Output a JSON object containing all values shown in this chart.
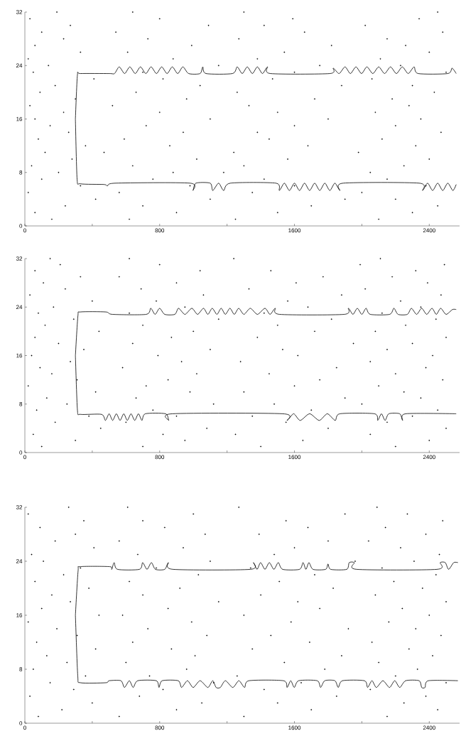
{
  "chart_data": [
    {
      "type": "scatter",
      "xlim": [
        0,
        2580
      ],
      "ylim": [
        0,
        32
      ],
      "xticks": [
        0,
        {
          "value": 400,
          "label": null
        },
        800,
        {
          "value": 1200,
          "label": null
        },
        1600,
        {
          "value": 2000,
          "label": null
        },
        2400
      ],
      "yticks": [
        0,
        8,
        16,
        24,
        32
      ],
      "series": [
        {
          "marker": "circle",
          "color": "#000000",
          "x": [
            160,
            620,
            1250,
            2100,
            60,
            900,
            1500,
            2300,
            240,
            700,
            1700,
            2450,
            420,
            1100,
            1900,
            2200,
            20,
            560,
            1350,
            2000,
            330,
            980,
            1600,
            2380,
            100,
            760,
            1420,
            2150,
            200,
            880,
            1180,
            2050,
            40,
            640,
            1300,
            2250,
            280,
            1020,
            1560,
            2400,
            120,
            470,
            1240,
            1980,
            360,
            860,
            1680,
            2320,
            80,
            590,
            1450,
            2120,
            260,
            940,
            1380,
            2470,
            150,
            720,
            1600,
            2200,
            60,
            1100,
            1800,
            2350,
            230,
            800,
            1500,
            2080,
            30,
            520,
            1330,
            2280,
            300,
            960,
            1720,
            2180,
            90,
            660,
            1260,
            2430,
            180,
            1040,
            1880,
            2300,
            410,
            820,
            1470,
            2060,
            50,
            700,
            1600,
            2500,
            140,
            1150,
            1750,
            2230,
            20,
            880,
            1380,
            2110,
            330,
            610,
            1540,
            2400,
            60,
            990,
            1820,
            2260,
            230,
            730,
            1270,
            2150,
            100,
            540,
            1660,
            2480,
            270,
            1090,
            1420,
            2020,
            30,
            800,
            1590,
            2340,
            190,
            640,
            1300,
            2450
          ],
          "values": [
            1,
            1,
            1,
            1,
            2,
            2,
            2,
            2,
            3,
            3,
            3,
            3,
            4,
            4,
            4,
            4,
            5,
            5,
            5,
            5,
            6,
            6,
            6,
            6,
            7,
            7,
            7,
            7,
            8,
            8,
            8,
            8,
            9,
            9,
            9,
            9,
            10,
            10,
            10,
            10,
            11,
            11,
            11,
            11,
            12,
            12,
            12,
            12,
            13,
            13,
            13,
            13,
            14,
            14,
            14,
            14,
            15,
            15,
            15,
            15,
            16,
            16,
            16,
            16,
            17,
            17,
            17,
            17,
            18,
            18,
            18,
            18,
            19,
            19,
            19,
            19,
            20,
            20,
            20,
            20,
            21,
            21,
            21,
            21,
            22,
            22,
            22,
            22,
            23,
            23,
            23,
            23,
            24,
            24,
            24,
            24,
            25,
            25,
            25,
            25,
            26,
            26,
            26,
            26,
            27,
            27,
            27,
            27,
            28,
            28,
            28,
            28,
            29,
            29,
            29,
            29,
            30,
            30,
            30,
            30,
            31,
            31,
            31,
            31,
            32,
            32,
            32,
            32
          ]
        },
        {
          "type": "line",
          "marker": "none",
          "color": "#000000",
          "x": [
            300,
            312,
            330,
            500,
            532,
            560,
            592,
            623,
            655,
            686,
            718,
            749,
            781,
            812,
            844,
            875,
            907,
            938,
            972,
            1040,
            1056,
            1075,
            1232,
            1260,
            1290,
            1320,
            1350,
            1380,
            1410,
            1440,
            1458,
            1810,
            1830,
            1865,
            1900,
            1932,
            1965,
            1998,
            2030,
            2065,
            2100,
            2135,
            2170,
            2205,
            2240,
            2275,
            2310,
            2334,
            2510,
            2535,
            2560
          ],
          "values": [
            16,
            22.6,
            22.8,
            22.8,
            22.8,
            23.8,
            22.8,
            23.8,
            22.8,
            23.8,
            22.8,
            23.8,
            22.8,
            23.8,
            22.8,
            23.8,
            22.8,
            23.8,
            22.8,
            22.8,
            23.8,
            22.8,
            22.8,
            23.8,
            22.8,
            23.8,
            22.8,
            23.8,
            22.8,
            23.8,
            22.8,
            22.8,
            23.6,
            22.8,
            23.8,
            22.8,
            23.8,
            22.8,
            23.8,
            22.8,
            23.8,
            22.8,
            23.8,
            22.8,
            23.8,
            22.8,
            23.8,
            22.8,
            22.8,
            23.6,
            22.8
          ]
        },
        {
          "type": "line",
          "marker": "none",
          "color": "#000000",
          "x": [
            300,
            310,
            330,
            470,
            490,
            540,
            980,
            997,
            1015,
            1100,
            1115,
            1150,
            1180,
            1220,
            1490,
            1510,
            1540,
            1570,
            1600,
            1630,
            1660,
            1690,
            1720,
            1750,
            1780,
            1810,
            1840,
            1870,
            1890,
            2340,
            2360,
            2390,
            2420,
            2450,
            2480,
            2510,
            2540,
            2560
          ],
          "values": [
            16,
            7.0,
            6.3,
            6.2,
            6.0,
            6.4,
            6.4,
            5.3,
            6.4,
            6.4,
            5.3,
            6.4,
            5.3,
            6.4,
            6.4,
            5.3,
            6.4,
            5.3,
            6.4,
            5.3,
            6.4,
            5.3,
            6.4,
            5.3,
            6.4,
            5.3,
            6.4,
            5.3,
            6.4,
            6.4,
            5.3,
            6.4,
            5.3,
            6.4,
            5.3,
            6.4,
            5.3,
            6.2
          ]
        }
      ]
    },
    {
      "type": "scatter",
      "xlim": [
        0,
        2580
      ],
      "ylim": [
        0,
        32
      ],
      "xticks": [
        0,
        {
          "value": 400,
          "label": null
        },
        800,
        {
          "value": 1200,
          "label": null
        },
        1600,
        {
          "value": 2000,
          "label": null
        },
        2400
      ],
      "yticks": [
        0,
        8,
        16,
        24,
        32
      ],
      "series": [
        {
          "marker": "circle",
          "color": "#000000",
          "x": [
            100,
            700,
            1400,
            2200,
            300,
            950,
            1650,
            2400,
            50,
            820,
            1250,
            2050,
            450,
            1080,
            1800,
            2500,
            180,
            600,
            1550,
            2150,
            380,
            900,
            1350,
            2300,
            70,
            760,
            1700,
            2450,
            250,
            1120,
            1480,
            2000,
            130,
            660,
            1900,
            2350,
            420,
            980,
            1300,
            2250,
            20,
            720,
            1600,
            2100,
            310,
            850,
            1750,
            2480,
            160,
            1020,
            1450,
            2200,
            90,
            580,
            1850,
            2380,
            270,
            930,
            1280,
            2050,
            40,
            790,
            1620,
            2420,
            350,
            1100,
            1530,
            2150,
            200,
            640,
            1950,
            2300,
            60,
            870,
            1380,
            2500,
            440,
            1000,
            1720,
            2080,
            120,
            700,
            1500,
            2260,
            290,
            1150,
            1820,
            2440,
            80,
            620,
            1420,
            2120,
            170,
            950,
            1680,
            2350,
            400,
            780,
            1560,
            2230,
            30,
            1060,
            1880,
            2470,
            240,
            690,
            1330,
            2020,
            110,
            900,
            1610,
            2390,
            330,
            560,
            1770,
            2180,
            60,
            1040,
            1460,
            2320,
            210,
            800,
            1990,
            2490,
            150,
            620,
            1240,
            2110
          ],
          "values": [
            1,
            1,
            1,
            1,
            2,
            2,
            2,
            2,
            3,
            3,
            3,
            3,
            4,
            4,
            4,
            4,
            5,
            5,
            5,
            5,
            6,
            6,
            6,
            6,
            7,
            7,
            7,
            7,
            8,
            8,
            8,
            8,
            9,
            9,
            9,
            9,
            10,
            10,
            10,
            10,
            11,
            11,
            11,
            11,
            12,
            12,
            12,
            12,
            13,
            13,
            13,
            13,
            14,
            14,
            14,
            14,
            15,
            15,
            15,
            15,
            16,
            16,
            16,
            16,
            17,
            17,
            17,
            17,
            18,
            18,
            18,
            18,
            19,
            19,
            19,
            19,
            20,
            20,
            20,
            20,
            21,
            21,
            21,
            21,
            22,
            22,
            22,
            22,
            23,
            23,
            23,
            23,
            24,
            24,
            24,
            24,
            25,
            25,
            25,
            25,
            26,
            26,
            26,
            26,
            27,
            27,
            27,
            27,
            28,
            28,
            28,
            28,
            29,
            29,
            29,
            29,
            30,
            30,
            30,
            30,
            31,
            31,
            31,
            31,
            32,
            32,
            32,
            32
          ]
        },
        {
          "type": "line",
          "marker": "none",
          "color": "#000000",
          "x": [
            300,
            315,
            330,
            480,
            520,
            720,
            747,
            773,
            800,
            830,
            890,
            912,
            950,
            991,
            1025,
            1060,
            1086,
            1112,
            1140,
            1165,
            1190,
            1217,
            1243,
            1269,
            1300,
            1338,
            1380,
            1425,
            1455,
            1486,
            1512,
            1895,
            1920,
            1947,
            1973,
            2000,
            2025,
            2050,
            2165,
            2190,
            2215,
            2270,
            2294,
            2325,
            2355,
            2385,
            2416,
            2442,
            2468,
            2500,
            2538,
            2560
          ],
          "values": [
            16,
            22.6,
            23.2,
            23.2,
            22.8,
            22.8,
            23.8,
            22.8,
            23.8,
            22.8,
            22.8,
            23.8,
            22.8,
            23.8,
            22.8,
            23.8,
            22.8,
            23.8,
            22.8,
            23.8,
            22.8,
            23.8,
            22.8,
            23.8,
            22.8,
            23.8,
            22.8,
            23.8,
            22.8,
            23.8,
            22.8,
            22.8,
            23.8,
            22.8,
            23.8,
            22.8,
            23.8,
            22.8,
            22.8,
            23.8,
            22.8,
            22.8,
            23.8,
            22.8,
            23.8,
            22.8,
            23.8,
            22.8,
            23.8,
            22.8,
            23.6,
            23.6
          ]
        },
        {
          "type": "line",
          "marker": "none",
          "color": "#000000",
          "x": [
            300,
            312,
            330,
            455,
            478,
            500,
            521,
            543,
            565,
            587,
            608,
            630,
            652,
            674,
            695,
            715,
            835,
            855,
            875,
            1530,
            1556,
            1595,
            1634,
            1690,
            1747,
            1795,
            1842,
            1870,
            2075,
            2094,
            2116,
            2138,
            2160,
            2225,
            2242,
            2260,
            2560
          ],
          "values": [
            16,
            7.0,
            6.3,
            6.3,
            5.3,
            6.4,
            5.3,
            6.4,
            5.3,
            6.4,
            5.3,
            6.4,
            5.3,
            6.4,
            5.3,
            6.4,
            6.4,
            5.3,
            6.4,
            6.4,
            5.3,
            6.4,
            5.3,
            6.4,
            5.3,
            6.4,
            5.3,
            6.4,
            6.4,
            5.3,
            6.4,
            5.3,
            6.4,
            6.4,
            5.3,
            6.4,
            6.4
          ]
        }
      ]
    },
    {
      "type": "scatter",
      "xlim": [
        0,
        2580
      ],
      "ylim": [
        0,
        32
      ],
      "xticks": [
        0,
        {
          "value": 400,
          "label": null
        },
        800,
        {
          "value": 1200,
          "label": null
        },
        1600,
        {
          "value": 2000,
          "label": null
        },
        2400
      ],
      "yticks": [
        0,
        8,
        16,
        24,
        32
      ],
      "series": [
        {
          "marker": "circle",
          "color": "#000000",
          "x": [
            80,
            560,
            1300,
            2150,
            220,
            900,
            1700,
            2450,
            400,
            1050,
            1500,
            2250,
            30,
            680,
            1850,
            2380,
            290,
            820,
            1420,
            2050,
            150,
            1120,
            1640,
            2500,
            360,
            740,
            1260,
            2200,
            50,
            960,
            1780,
            2330,
            250,
            600,
            1540,
            2100,
            130,
            1010,
            1880,
            2420,
            420,
            870,
            1350,
            2280,
            70,
            640,
            1690,
            2060,
            310,
            1080,
            1460,
            2470,
            190,
            730,
            1920,
            2320,
            20,
            990,
            1580,
            2160,
            440,
            580,
            1300,
            2400,
            100,
            850,
            1750,
            2240,
            270,
            1150,
            1620,
            2500,
            160,
            700,
            1400,
            2080,
            380,
            920,
            1830,
            2360,
            60,
            620,
            1510,
            2190,
            230,
            1030,
            1720,
            2440,
            330,
            780,
            1340,
            2120,
            110,
            1100,
            1960,
            2310,
            40,
            670,
            1480,
            2460,
            410,
            940,
            1600,
            2230,
            180,
            560,
            1800,
            2040,
            300,
            1070,
            1390,
            2380,
            90,
            830,
            1680,
            2140,
            350,
            700,
            1550,
            2480,
            20,
            1000,
            1900,
            2270,
            260,
            610,
            1270,
            2090
          ],
          "values": [
            1,
            1,
            1,
            1,
            2,
            2,
            2,
            2,
            3,
            3,
            3,
            3,
            4,
            4,
            4,
            4,
            5,
            5,
            5,
            5,
            6,
            6,
            6,
            6,
            7,
            7,
            7,
            7,
            8,
            8,
            8,
            8,
            9,
            9,
            9,
            9,
            10,
            10,
            10,
            10,
            11,
            11,
            11,
            11,
            12,
            12,
            12,
            12,
            13,
            13,
            13,
            13,
            14,
            14,
            14,
            14,
            15,
            15,
            15,
            15,
            16,
            16,
            16,
            16,
            17,
            17,
            17,
            17,
            18,
            18,
            18,
            18,
            19,
            19,
            19,
            19,
            20,
            20,
            20,
            20,
            21,
            21,
            21,
            21,
            22,
            22,
            22,
            22,
            23,
            23,
            23,
            23,
            24,
            24,
            24,
            24,
            25,
            25,
            25,
            25,
            26,
            26,
            26,
            26,
            27,
            27,
            27,
            27,
            28,
            28,
            28,
            28,
            29,
            29,
            29,
            29,
            30,
            30,
            30,
            30,
            31,
            31,
            31,
            31,
            32,
            32,
            32,
            32
          ]
        },
        {
          "type": "line",
          "marker": "none",
          "color": "#000000",
          "x": [
            300,
            316,
            330,
            504,
            515,
            530,
            550,
            680,
            699,
            725,
            751,
            775,
            830,
            852,
            880,
            1338,
            1356,
            1378,
            1399,
            1425,
            1451,
            1478,
            1504,
            1530,
            1630,
            1651,
            1668,
            1686,
            1710,
            1785,
            1799,
            1815,
            1910,
            1925,
            1955,
            1970,
            2445,
            2465,
            2495,
            2515,
            2545,
            2570
          ],
          "values": [
            16,
            22.6,
            23.2,
            23.2,
            22.8,
            23.8,
            22.8,
            22.8,
            23.8,
            22.8,
            23.8,
            22.8,
            22.8,
            23.8,
            22.8,
            22.8,
            23.8,
            22.8,
            23.8,
            22.8,
            23.8,
            22.8,
            23.8,
            22.8,
            22.8,
            23.8,
            22.8,
            23.8,
            22.8,
            22.8,
            23.6,
            22.8,
            22.8,
            23.8,
            23.8,
            22.8,
            22.8,
            23.8,
            23.8,
            22.8,
            23.8,
            23.8
          ]
        },
        {
          "type": "line",
          "marker": "none",
          "color": "#000000",
          "x": [
            300,
            314,
            330,
            480,
            500,
            570,
            591,
            620,
            643,
            670,
            780,
            796,
            815,
            910,
            930,
            965,
            999,
            1040,
            1086,
            1115,
            1135,
            1160,
            1190,
            1234,
            1270,
            1304,
            1330,
            1535,
            1556,
            1578,
            1599,
            1625,
            1735,
            1755,
            1780,
            1840,
            1860,
            1885,
            2015,
            2034,
            2060,
            2086,
            2125,
            2164,
            2195,
            2225,
            2260,
            2340,
            2355,
            2375,
            2395,
            2570
          ],
          "values": [
            16,
            7.0,
            6.0,
            6.0,
            6.3,
            6.3,
            5.3,
            6.3,
            5.3,
            6.3,
            6.3,
            5.3,
            6.3,
            6.3,
            5.3,
            6.3,
            5.3,
            6.3,
            5.3,
            6.3,
            5.3,
            5.3,
            6.3,
            5.3,
            6.3,
            5.3,
            6.3,
            6.3,
            5.3,
            6.3,
            5.3,
            6.3,
            6.3,
            5.3,
            6.3,
            6.3,
            5.3,
            6.3,
            6.3,
            5.3,
            6.3,
            5.3,
            6.3,
            5.3,
            6.3,
            5.3,
            6.3,
            6.3,
            5.3,
            5.3,
            6.3,
            6.3
          ]
        }
      ]
    }
  ]
}
